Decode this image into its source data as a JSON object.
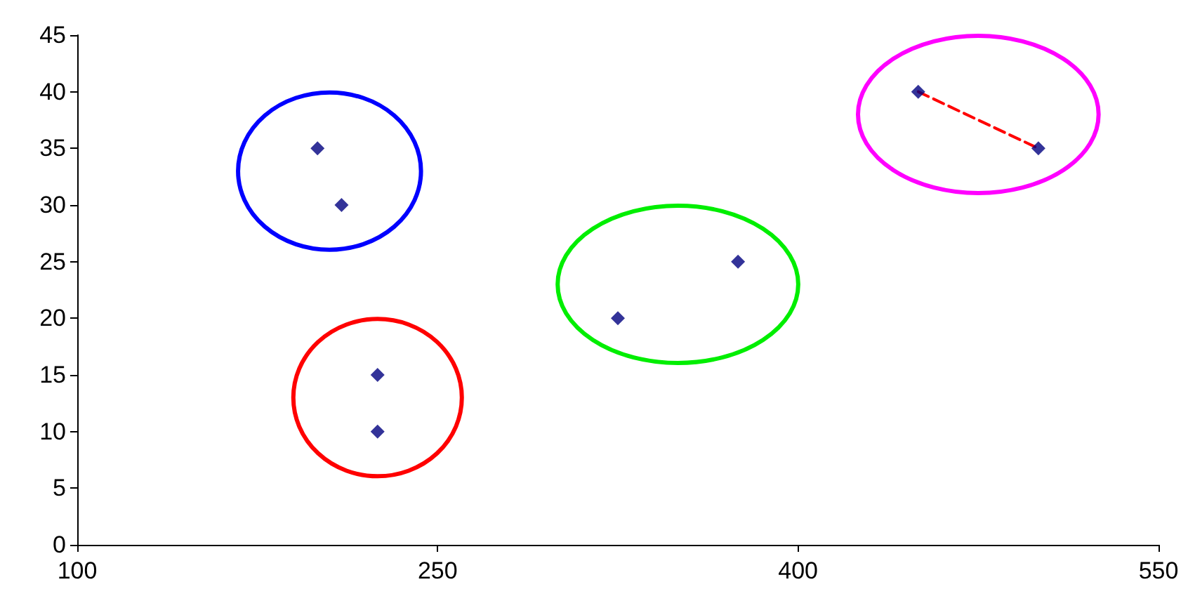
{
  "chart_data": {
    "type": "scatter",
    "marker": "diamond",
    "grid": false,
    "xlim": [
      100,
      550
    ],
    "xticks": [
      100,
      250,
      400,
      550
    ],
    "ylim": [
      0,
      45
    ],
    "yticks": [
      0,
      5,
      10,
      15,
      20,
      25,
      30,
      35,
      40,
      45
    ],
    "series": [
      {
        "color": "#000080",
        "x": [
          200,
          210
        ],
        "values": [
          35,
          30
        ]
      },
      {
        "color": "#000080",
        "x": [
          225,
          225
        ],
        "values": [
          15,
          10
        ]
      },
      {
        "color": "#000080",
        "x": [
          325,
          375
        ],
        "values": [
          20,
          25
        ]
      },
      {
        "color": "#000080",
        "x": [
          450,
          500
        ],
        "values": [
          40,
          35
        ]
      },
      {
        "type": "line",
        "color": "#ff0000",
        "line_style": "dashed",
        "marker": "none",
        "x": [
          450,
          500
        ],
        "values": [
          40,
          35
        ]
      }
    ]
  }
}
